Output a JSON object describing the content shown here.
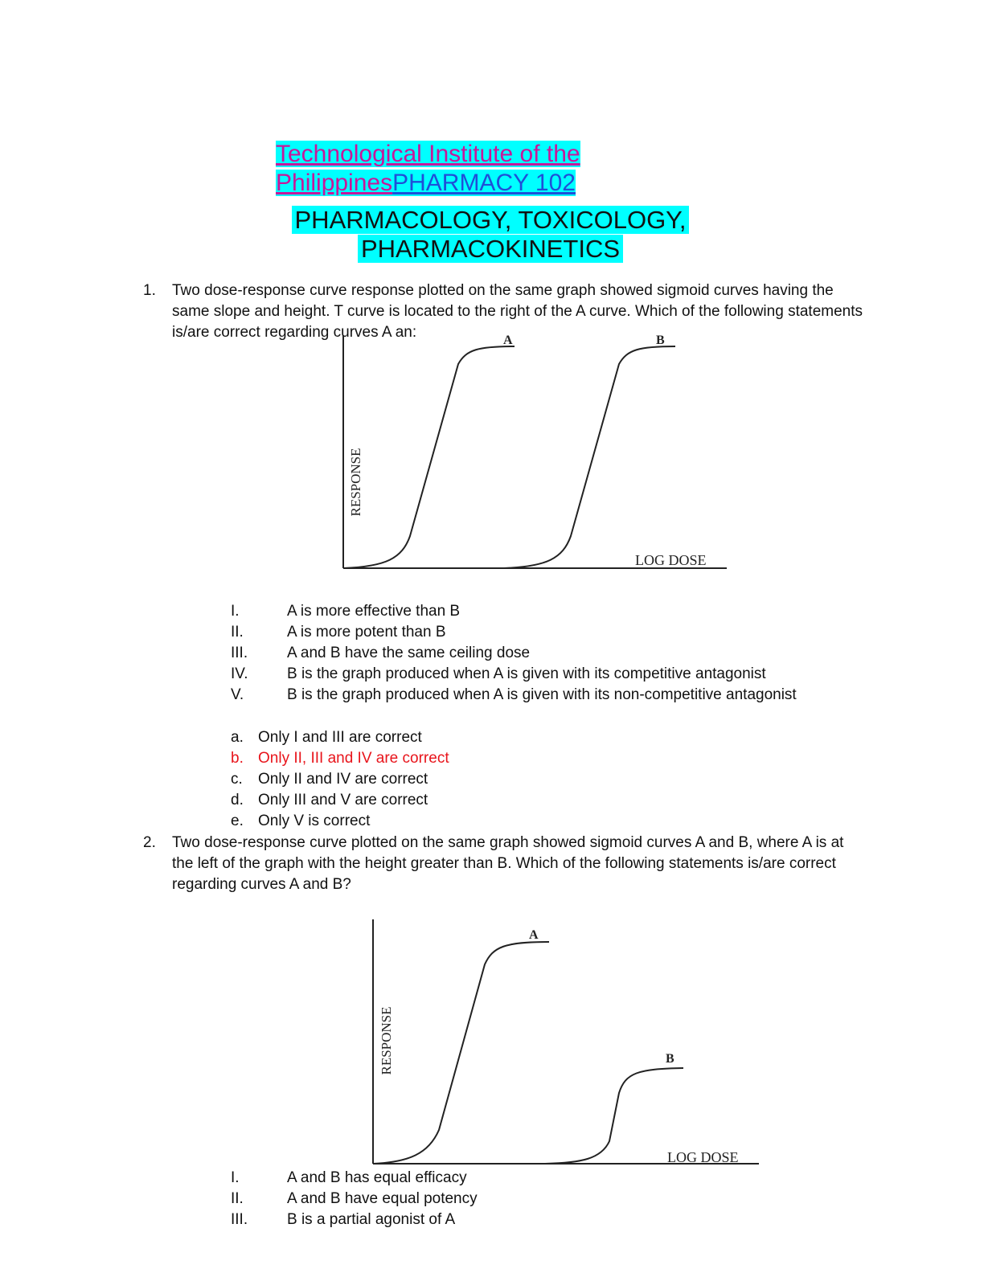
{
  "header": {
    "line1": "Technological Institute of the ",
    "line2a": "Philippines",
    "line2b": "PHARMACY 102",
    "subtitle1": "PHARMACOLOGY, TOXICOLOGY,",
    "subtitle2": "PHARMACOKINETICS"
  },
  "q1": {
    "num": "1.",
    "text": "Two dose-response curve response plotted on the same graph showed sigmoid curves having the same slope and height. T curve is located to the right of the A curve. Which of the following statements is/are correct regarding curves A an:",
    "chart": {
      "ylabel": "RESPONSE",
      "xlabel": "LOG DOSE",
      "labelA": "A",
      "labelB": "B"
    },
    "statements": [
      {
        "num": "I.",
        "text": "A is more effective than B"
      },
      {
        "num": "II.",
        "text": "A is more potent than B"
      },
      {
        "num": "III.",
        "text": "A and B have the same ceiling dose"
      },
      {
        "num": "IV.",
        "text": "B is the graph produced when A is given with its competitive antagonist"
      },
      {
        "num": "V.",
        "text": "B is the graph produced when A is given with its non-competitive antagonist"
      }
    ],
    "options": [
      {
        "letter": "a.",
        "text": "Only I and III are correct"
      },
      {
        "letter": "b.",
        "text": "Only II, III and IV are correct"
      },
      {
        "letter": "c.",
        "text": "Only II and IV are correct"
      },
      {
        "letter": "d.",
        "text": "Only III and V are correct"
      },
      {
        "letter": "e.",
        "text": "Only V is correct"
      }
    ],
    "highlight_color": "#e8141b"
  },
  "q2": {
    "num": "2.",
    "text": "Two dose-response curve plotted on the same graph showed sigmoid curves A and B, where A is at the left of the graph with the height greater than B. Which of the following statements is/are correct regarding curves A and B?",
    "chart": {
      "ylabel": "RESPONSE",
      "xlabel": "LOG DOSE",
      "labelA": "A",
      "labelB": "B"
    },
    "statements": [
      {
        "num": "I.",
        "text": "A and B has equal efficacy"
      },
      {
        "num": "II.",
        "text": "A and B have equal potency"
      },
      {
        "num": "III.",
        "text": "B is a partial agonist of A"
      }
    ]
  },
  "colors": {
    "highlight_bg": "#00ffff",
    "header_magenta": "#c8179a",
    "header_blue": "#1f4fd8"
  }
}
